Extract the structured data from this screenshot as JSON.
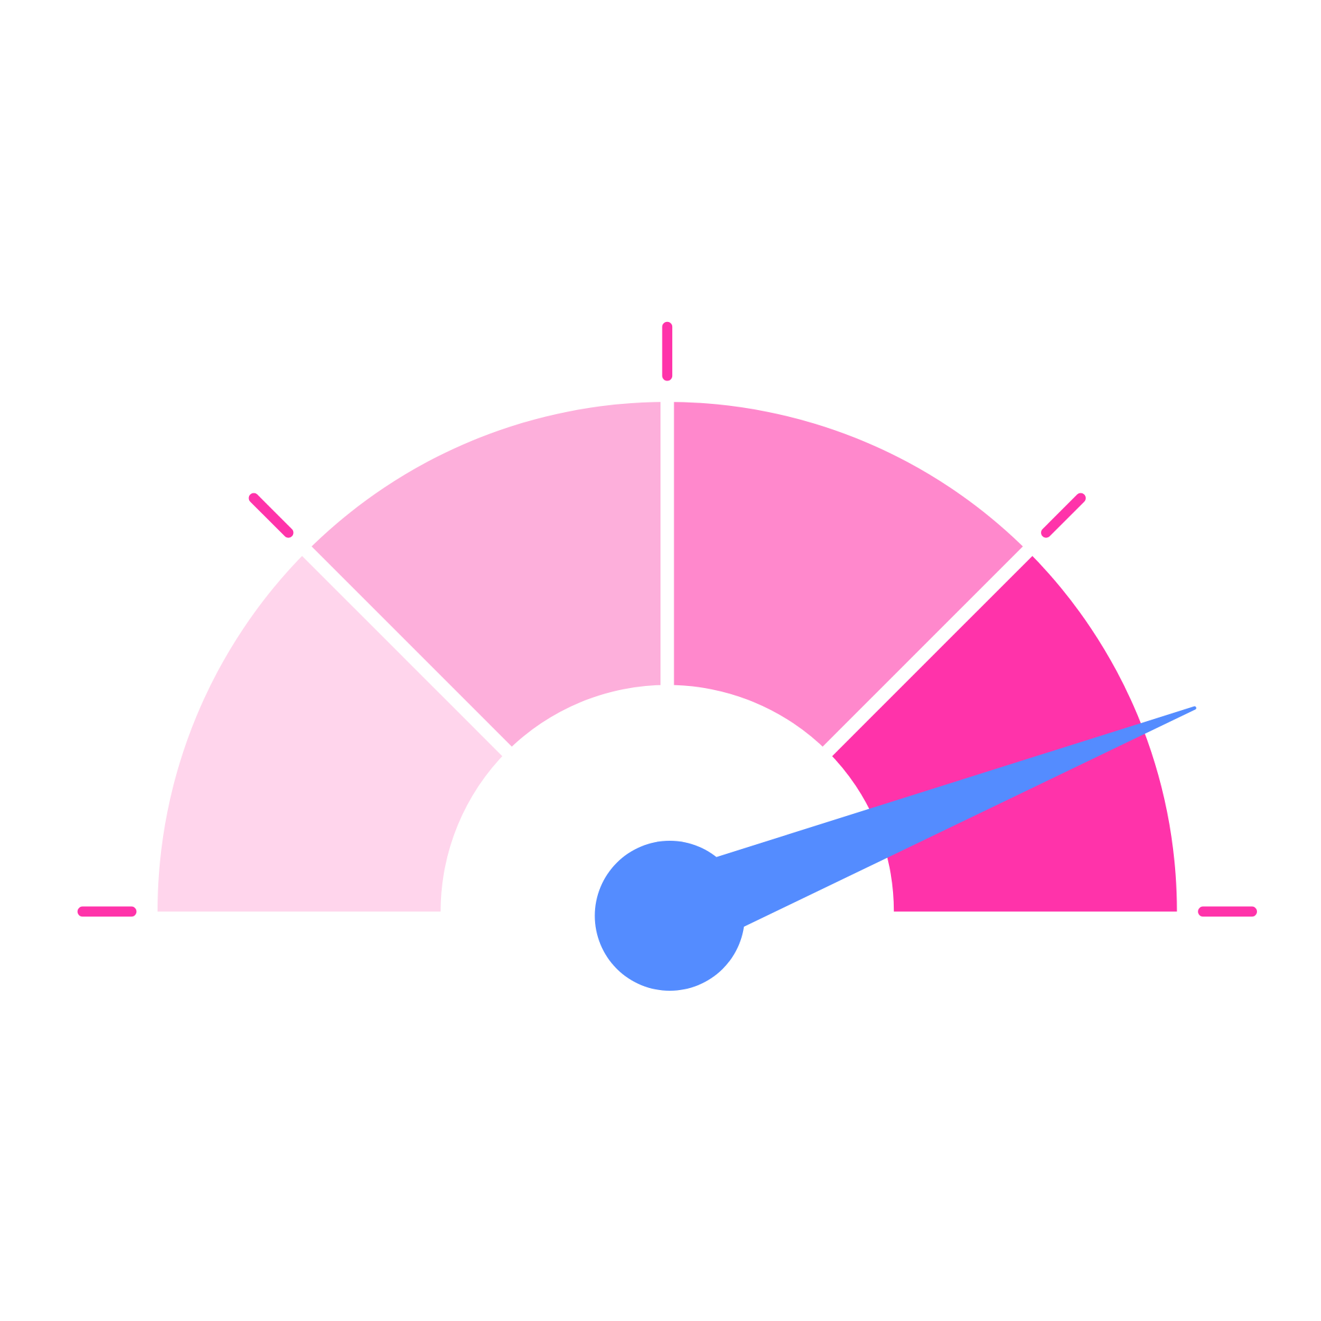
{
  "gauge": {
    "value_fraction": 0.88,
    "segment_colors": [
      "#FFD5EC",
      "#FDAFDB",
      "#FF88CC",
      "#FF33AA"
    ],
    "tick_color": "#FF33AA",
    "needle_color": "#548CFF",
    "background": "#FFFFFF"
  }
}
